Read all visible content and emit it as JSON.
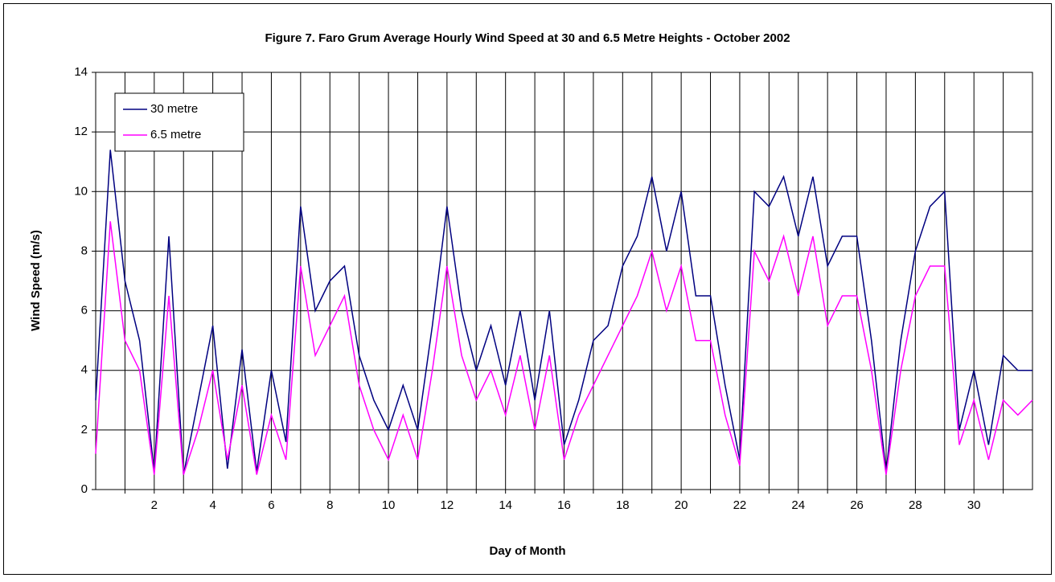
{
  "chart_data": {
    "type": "line",
    "title": "Figure 7. Faro Grum Average Hourly Wind Speed at 30 and 6.5 Metre Heights - October 2002",
    "xlabel": "Day of Month",
    "ylabel": "Wind Speed (m/s)",
    "xlim": [
      0,
      32
    ],
    "xticks": [
      2,
      4,
      6,
      8,
      10,
      12,
      14,
      16,
      18,
      20,
      22,
      24,
      26,
      28,
      30
    ],
    "xminorticks": [
      1,
      3,
      5,
      7,
      9,
      11,
      13,
      15,
      17,
      19,
      21,
      23,
      25,
      27,
      29,
      31
    ],
    "ylim": [
      0,
      14
    ],
    "yticks": [
      0,
      2,
      4,
      6,
      8,
      10,
      12,
      14
    ],
    "grid": true,
    "legend": "upper left",
    "x": [
      0,
      0.5,
      1,
      1.5,
      2,
      2.5,
      3,
      3.5,
      4,
      4.5,
      5,
      5.5,
      6,
      6.5,
      7,
      7.5,
      8,
      8.5,
      9,
      9.5,
      10,
      10.5,
      11,
      11.5,
      12,
      12.5,
      13,
      13.5,
      14,
      14.5,
      15,
      15.5,
      16,
      16.5,
      17,
      17.5,
      18,
      18.5,
      19,
      19.5,
      20,
      20.5,
      21,
      21.5,
      22,
      22.5,
      23,
      23.5,
      24,
      24.5,
      25,
      25.5,
      26,
      26.5,
      27,
      27.5,
      28,
      28.5,
      29,
      29.5,
      30,
      30.5,
      31,
      31.5,
      32
    ],
    "series": [
      {
        "name": "30 metre",
        "color": "#000080",
        "values": [
          3.0,
          11.4,
          7.0,
          5.0,
          0.6,
          8.5,
          0.5,
          3.0,
          5.5,
          0.7,
          4.7,
          0.6,
          4.0,
          1.6,
          9.5,
          6.0,
          7.0,
          7.5,
          4.5,
          3.0,
          2.0,
          3.5,
          2.0,
          5.5,
          9.5,
          6.0,
          4.0,
          5.5,
          3.5,
          6.0,
          3.0,
          6.0,
          1.5,
          3.0,
          5.0,
          5.5,
          7.5,
          8.5,
          10.5,
          8.0,
          10.0,
          6.5,
          6.5,
          3.5,
          1.0,
          10.0,
          9.5,
          10.5,
          8.5,
          10.5,
          7.5,
          8.5,
          8.5,
          5.0,
          0.6,
          5.0,
          8.0,
          9.5,
          10.0,
          2.0,
          4.0,
          1.5,
          4.5,
          4.0,
          4.0
        ]
      },
      {
        "name": "6.5 metre",
        "color": "#ff00ff",
        "values": [
          1.2,
          9.0,
          5.0,
          4.0,
          0.5,
          6.5,
          0.5,
          2.0,
          4.0,
          1.0,
          3.5,
          0.5,
          2.5,
          1.0,
          7.5,
          4.5,
          5.5,
          6.5,
          3.5,
          2.0,
          1.0,
          2.5,
          1.0,
          4.0,
          7.5,
          4.5,
          3.0,
          4.0,
          2.5,
          4.5,
          2.0,
          4.5,
          1.0,
          2.5,
          3.5,
          4.5,
          5.5,
          6.5,
          8.0,
          6.0,
          7.5,
          5.0,
          5.0,
          2.5,
          0.8,
          8.0,
          7.0,
          8.5,
          6.5,
          8.5,
          5.5,
          6.5,
          6.5,
          4.0,
          0.5,
          4.0,
          6.5,
          7.5,
          7.5,
          1.5,
          3.0,
          1.0,
          3.0,
          2.5,
          3.0
        ]
      }
    ]
  }
}
